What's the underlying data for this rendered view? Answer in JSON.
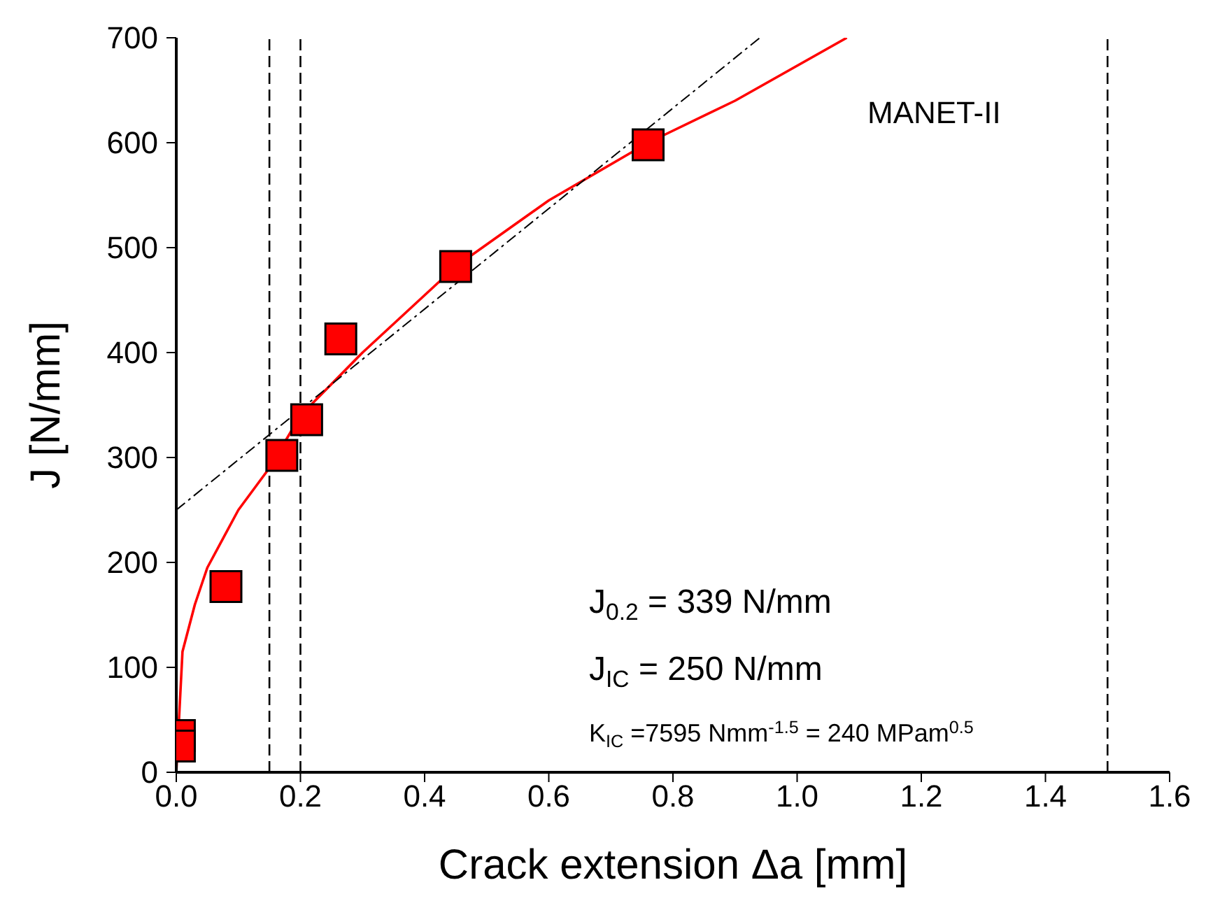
{
  "chart_data": {
    "type": "scatter",
    "xlabel": "Crack extension Δa [mm]",
    "ylabel": "J [N/mm]",
    "xlim": [
      0,
      1.6
    ],
    "xticks": [
      {
        "value": 0,
        "label": "0.0"
      },
      0.2,
      0.4,
      0.6,
      0.8,
      {
        "value": 1,
        "label": "1.0"
      },
      1.2,
      1.4,
      1.6
    ],
    "ylim": [
      0,
      700
    ],
    "yticks": [
      0,
      100,
      200,
      300,
      400,
      500,
      600,
      700
    ],
    "series": [
      {
        "color": "#ff0000",
        "marker": "square",
        "x": [
          0.005,
          0.005,
          0.08,
          0.17,
          0.21,
          0.265,
          0.45,
          0.76
        ],
        "values": [
          35,
          25,
          177,
          302,
          336,
          413,
          482,
          598
        ]
      },
      {
        "type": "line",
        "color": "#ff0000",
        "marker": "none",
        "line_style": "solid",
        "x": [
          0,
          0.01,
          0.03,
          0.05,
          0.1,
          0.15,
          0.2,
          0.3,
          0.45,
          0.6,
          0.76,
          0.9,
          1.08
        ],
        "values": [
          0,
          115,
          160,
          195,
          250,
          290,
          340,
          400,
          482,
          545,
          600,
          640,
          700
        ]
      },
      {
        "type": "line",
        "color": "#000000",
        "marker": "none",
        "line_style": "dashed",
        "x": [
          0,
          0.94
        ],
        "values": [
          250,
          700
        ]
      }
    ],
    "ref_lines": [
      {
        "axis": "x",
        "value": 0.15,
        "line_style": "dashed",
        "color": "#000000"
      },
      {
        "axis": "x",
        "value": 0.2,
        "line_style": "dashed",
        "color": "#000000"
      },
      {
        "axis": "x",
        "value": 1.5,
        "line_style": "dashed",
        "color": "#000000"
      }
    ],
    "annotations": [
      "MANET-II",
      "J$_{0.2}$ =  339 N/mm",
      "J$_{IC}$ =  250 N/mm",
      "K$_{IC}$ =7595 Nmm$^{-1.5}$ = 240 MPam$^{0.5}$"
    ]
  }
}
